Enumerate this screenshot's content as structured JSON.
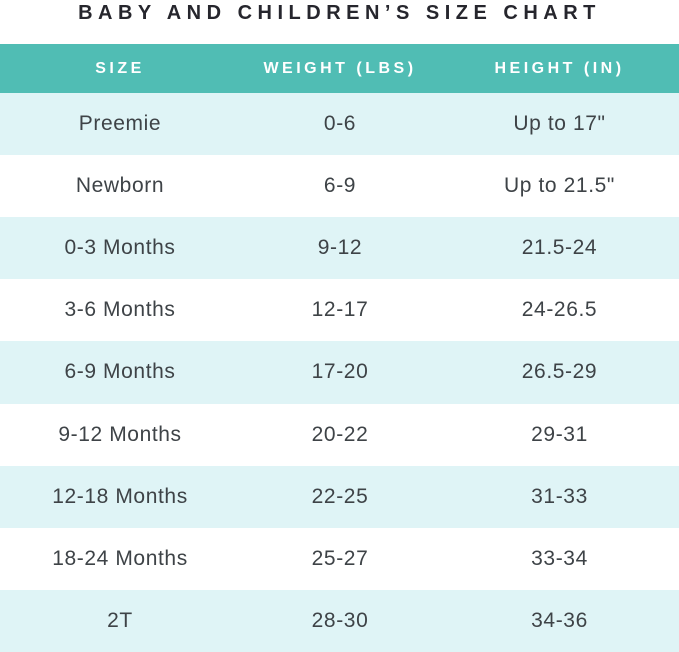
{
  "colors": {
    "header_bg": "#50bdb4",
    "header_text": "#ffffff",
    "alt_row_bg": "#dff4f6",
    "row_bg": "#ffffff",
    "cell_text": "#3e4347",
    "title_text": "#26262d"
  },
  "chart_data": {
    "type": "table",
    "title": "BABY AND CHILDREN’S SIZE CHART",
    "columns": [
      "SIZE",
      "WEIGHT (LBS)",
      "HEIGHT (IN)"
    ],
    "rows": [
      [
        "Preemie",
        "0-6",
        "Up to 17\""
      ],
      [
        "Newborn",
        "6-9",
        "Up to 21.5\""
      ],
      [
        "0-3 Months",
        "9-12",
        "21.5-24"
      ],
      [
        "3-6 Months",
        "12-17",
        "24-26.5"
      ],
      [
        "6-9 Months",
        "17-20",
        "26.5-29"
      ],
      [
        "9-12 Months",
        "20-22",
        "29-31"
      ],
      [
        "12-18 Months",
        "22-25",
        "31-33"
      ],
      [
        "18-24 Months",
        "25-27",
        "33-34"
      ],
      [
        "2T",
        "28-30",
        "34-36"
      ]
    ]
  }
}
